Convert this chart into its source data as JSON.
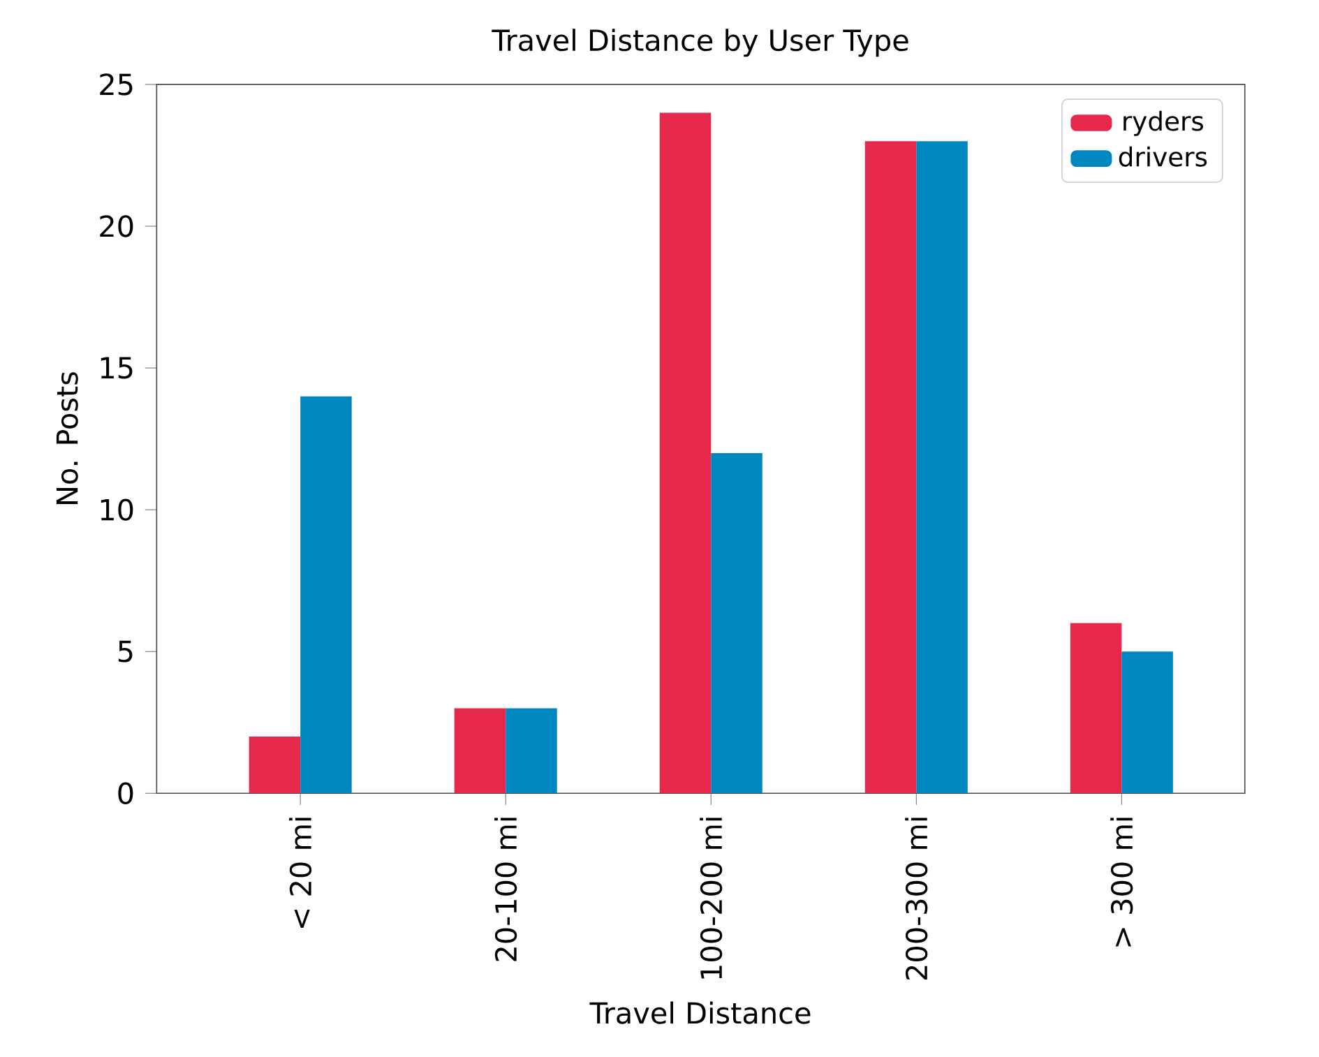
{
  "chart_data": {
    "type": "bar",
    "title": "Travel Distance by User Type",
    "xlabel": "Travel Distance",
    "ylabel": "No. Posts",
    "categories": [
      "< 20 mi",
      "20-100 mi",
      "100-200 mi",
      "200-300 mi",
      "> 300 mi"
    ],
    "series": [
      {
        "name": "ryders",
        "color": "#e6284a",
        "values": [
          2,
          3,
          24,
          23,
          6
        ]
      },
      {
        "name": "drivers",
        "color": "#0087c0",
        "values": [
          14,
          3,
          12,
          23,
          5
        ]
      }
    ],
    "ylim": [
      0,
      25
    ],
    "yticks": [
      0,
      5,
      10,
      15,
      20,
      25
    ],
    "grid": false,
    "legend": "top right"
  }
}
